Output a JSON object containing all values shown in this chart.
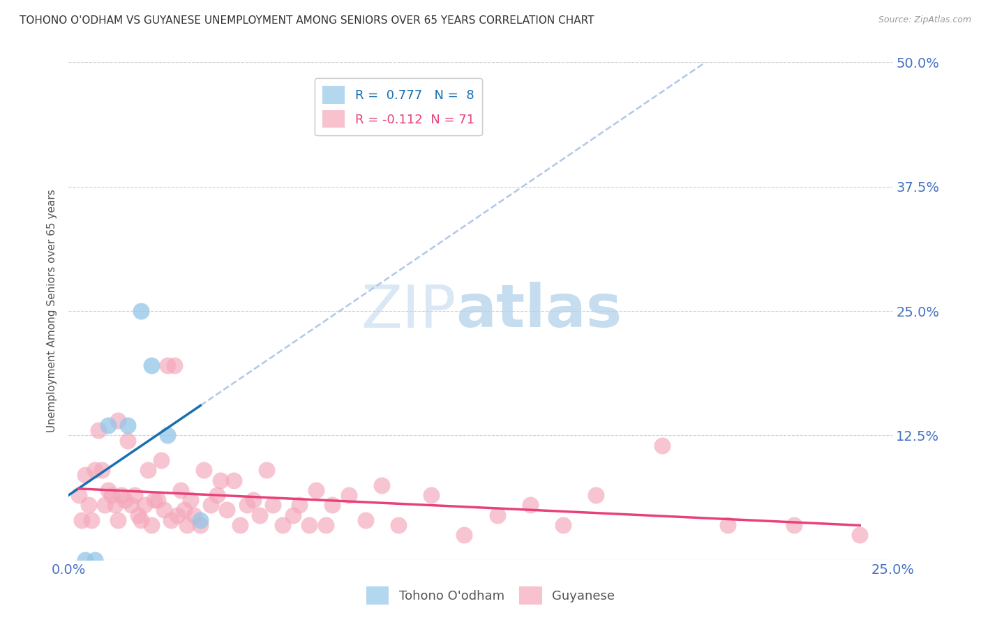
{
  "title": "TOHONO O'ODHAM VS GUYANESE UNEMPLOYMENT AMONG SENIORS OVER 65 YEARS CORRELATION CHART",
  "source": "Source: ZipAtlas.com",
  "ylabel": "Unemployment Among Seniors over 65 years",
  "xlim": [
    0.0,
    0.25
  ],
  "ylim": [
    0.0,
    0.5
  ],
  "blue_scatter_color": "#93c6e8",
  "pink_scatter_color": "#f4a7b9",
  "trend_blue_color": "#1a6faf",
  "trend_pink_color": "#e8417a",
  "dashed_color": "#b0c8e8",
  "R_blue": 0.777,
  "N_blue": 8,
  "R_pink": -0.112,
  "N_pink": 71,
  "legend_label_blue": "Tohono O'odham",
  "legend_label_pink": "Guyanese",
  "watermark_zip": "ZIP",
  "watermark_atlas": "atlas",
  "title_fontsize": 11,
  "axis_tick_color": "#4472c4",
  "tohono_x": [
    0.005,
    0.008,
    0.012,
    0.018,
    0.022,
    0.025,
    0.03,
    0.04
  ],
  "tohono_y": [
    0.0,
    0.0,
    0.135,
    0.135,
    0.25,
    0.195,
    0.125,
    0.04
  ],
  "guyanese_x": [
    0.003,
    0.004,
    0.005,
    0.006,
    0.007,
    0.008,
    0.009,
    0.01,
    0.011,
    0.012,
    0.013,
    0.014,
    0.015,
    0.015,
    0.016,
    0.017,
    0.018,
    0.019,
    0.02,
    0.021,
    0.022,
    0.023,
    0.024,
    0.025,
    0.026,
    0.027,
    0.028,
    0.029,
    0.03,
    0.031,
    0.032,
    0.033,
    0.034,
    0.035,
    0.036,
    0.037,
    0.038,
    0.04,
    0.041,
    0.043,
    0.045,
    0.046,
    0.048,
    0.05,
    0.052,
    0.054,
    0.056,
    0.058,
    0.06,
    0.062,
    0.065,
    0.068,
    0.07,
    0.073,
    0.075,
    0.078,
    0.08,
    0.085,
    0.09,
    0.095,
    0.1,
    0.11,
    0.12,
    0.13,
    0.14,
    0.15,
    0.16,
    0.18,
    0.2,
    0.22,
    0.24
  ],
  "guyanese_y": [
    0.065,
    0.04,
    0.085,
    0.055,
    0.04,
    0.09,
    0.13,
    0.09,
    0.055,
    0.07,
    0.065,
    0.055,
    0.04,
    0.14,
    0.065,
    0.06,
    0.12,
    0.055,
    0.065,
    0.045,
    0.04,
    0.055,
    0.09,
    0.035,
    0.06,
    0.06,
    0.1,
    0.05,
    0.195,
    0.04,
    0.195,
    0.045,
    0.07,
    0.05,
    0.035,
    0.06,
    0.045,
    0.035,
    0.09,
    0.055,
    0.065,
    0.08,
    0.05,
    0.08,
    0.035,
    0.055,
    0.06,
    0.045,
    0.09,
    0.055,
    0.035,
    0.045,
    0.055,
    0.035,
    0.07,
    0.035,
    0.055,
    0.065,
    0.04,
    0.075,
    0.035,
    0.065,
    0.025,
    0.045,
    0.055,
    0.035,
    0.065,
    0.115,
    0.035,
    0.035,
    0.025
  ]
}
